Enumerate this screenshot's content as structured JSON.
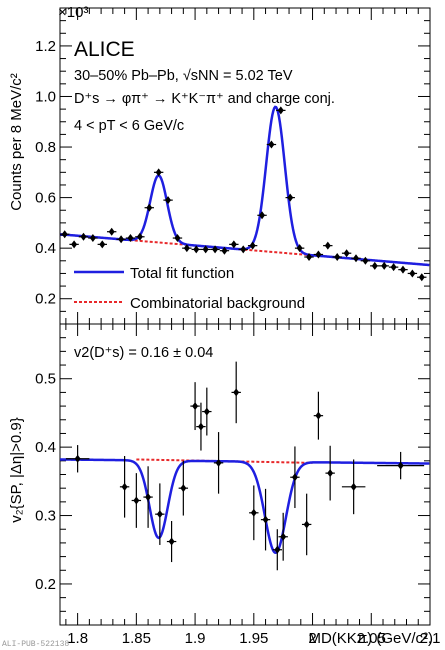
{
  "footer": "ALI-PUB-522138",
  "legend": {
    "total": "Total fit function",
    "background": "Combinatorial background"
  },
  "colors": {
    "total": "#1f1fe0",
    "background": "#e8282a",
    "points": "#000000"
  },
  "chart_data": [
    {
      "type": "scatter",
      "panel": "top",
      "ylabel": "Counts per 8 MeV/c²",
      "y_multiplier": "×10³",
      "ylim": [
        0.1,
        1.35
      ],
      "xlim": [
        1.785,
        2.1
      ],
      "yticks": [
        0.2,
        0.4,
        0.6,
        0.8,
        1.0,
        1.2
      ],
      "ytick_labels": [
        "0.2",
        "0.4",
        "0.6",
        "0.8",
        "1.0",
        "1.2"
      ],
      "annotations": [
        "ALICE",
        "30–50% Pb–Pb, √sNN = 5.02 TeV",
        "D⁺s → φπ⁺ → K⁺K⁻π⁺ and charge conj.",
        "4 < pT < 6 GeV/c"
      ],
      "series": [
        {
          "name": "Data",
          "style": "points",
          "x": [
            1.789,
            1.797,
            1.805,
            1.813,
            1.821,
            1.829,
            1.837,
            1.845,
            1.853,
            1.861,
            1.869,
            1.877,
            1.885,
            1.893,
            1.901,
            1.909,
            1.917,
            1.925,
            1.933,
            1.941,
            1.949,
            1.957,
            1.965,
            1.973,
            1.981,
            1.989,
            1.997,
            2.005,
            2.013,
            2.021,
            2.029,
            2.037,
            2.045,
            2.053,
            2.061,
            2.069,
            2.077,
            2.085,
            2.093
          ],
          "y": [
            0.455,
            0.415,
            0.445,
            0.44,
            0.415,
            0.465,
            0.435,
            0.44,
            0.445,
            0.56,
            0.7,
            0.59,
            0.44,
            0.4,
            0.395,
            0.395,
            0.395,
            0.39,
            0.415,
            0.395,
            0.41,
            0.53,
            0.81,
            0.945,
            0.6,
            0.4,
            0.365,
            0.375,
            0.41,
            0.365,
            0.38,
            0.36,
            0.35,
            0.33,
            0.33,
            0.325,
            0.315,
            0.3,
            0.285
          ]
        },
        {
          "name": "Total fit function",
          "style": "line",
          "peaks": [
            {
              "mean": 1.869,
              "sigma": 0.0072,
              "amp": 0.265
            },
            {
              "mean": 1.9685,
              "sigma": 0.0079,
              "amp": 0.575
            }
          ],
          "background": [
            [
              1.785,
              0.455
            ],
            [
              2.1,
              0.333
            ]
          ]
        },
        {
          "name": "Combinatorial background",
          "style": "dashed",
          "background": [
            [
              1.785,
              0.455
            ],
            [
              2.1,
              0.333
            ]
          ]
        }
      ]
    },
    {
      "type": "scatter",
      "panel": "bottom",
      "xlabel": "MD(KKπ) (GeV/c²)",
      "ylabel": "v₂{SP, |Δη|>0.9}",
      "xlim": [
        1.785,
        2.1
      ],
      "ylim": [
        0.14,
        0.58
      ],
      "xticks": [
        1.8,
        1.85,
        1.9,
        1.95,
        2.0,
        2.05,
        2.1
      ],
      "xtick_labels": [
        "1.8",
        "1.85",
        "1.9",
        "1.95",
        "2",
        "2.05",
        "2.1"
      ],
      "yticks": [
        0.2,
        0.3,
        0.4,
        0.5
      ],
      "ytick_labels": [
        "0.2",
        "0.3",
        "0.4",
        "0.5"
      ],
      "annotation": "v2(D⁺s) = 0.16 ± 0.04",
      "series": [
        {
          "name": "Data",
          "style": "points",
          "x": [
            1.8,
            1.84,
            1.85,
            1.86,
            1.87,
            1.88,
            1.89,
            1.9,
            1.905,
            1.91,
            1.92,
            1.935,
            1.95,
            1.96,
            1.97,
            1.975,
            1.985,
            1.995,
            2.005,
            2.015,
            2.035,
            2.075
          ],
          "y": [
            0.383,
            0.342,
            0.322,
            0.327,
            0.302,
            0.262,
            0.34,
            0.46,
            0.43,
            0.452,
            0.377,
            0.48,
            0.304,
            0.294,
            0.25,
            0.269,
            0.356,
            0.287,
            0.446,
            0.362,
            0.342,
            0.373
          ],
          "yerr": [
            0.02,
            0.045,
            0.04,
            0.045,
            0.045,
            0.03,
            0.04,
            0.035,
            0.035,
            0.035,
            0.045,
            0.045,
            0.04,
            0.045,
            0.03,
            0.035,
            0.045,
            0.045,
            0.035,
            0.04,
            0.04,
            0.02
          ],
          "xerr": [
            0.01,
            0.004,
            0.004,
            0.004,
            0.004,
            0.004,
            0.004,
            0.004,
            0.004,
            0.004,
            0.004,
            0.004,
            0.004,
            0.004,
            0.004,
            0.004,
            0.004,
            0.004,
            0.004,
            0.004,
            0.01,
            0.02
          ]
        },
        {
          "name": "Total fit function",
          "style": "line",
          "dips": [
            {
              "mean": 1.869,
              "sigma": 0.0077,
              "depth": 0.113
            },
            {
              "mean": 1.9685,
              "sigma": 0.0089,
              "depth": 0.133
            }
          ],
          "background": [
            [
              1.785,
              0.382
            ],
            [
              2.1,
              0.376
            ]
          ]
        },
        {
          "name": "Combinatorial background",
          "style": "dashed",
          "background": [
            [
              1.85,
              0.382
            ],
            [
              2.0,
              0.377
            ]
          ]
        }
      ]
    }
  ]
}
